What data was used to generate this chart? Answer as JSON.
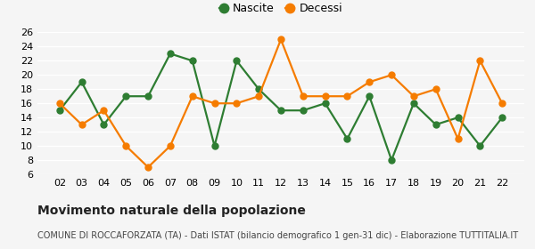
{
  "years": [
    "02",
    "03",
    "04",
    "05",
    "06",
    "07",
    "08",
    "09",
    "10",
    "11",
    "12",
    "13",
    "14",
    "15",
    "16",
    "17",
    "18",
    "19",
    "20",
    "21",
    "22"
  ],
  "nascite": [
    15,
    19,
    13,
    17,
    17,
    23,
    22,
    10,
    22,
    18,
    15,
    15,
    16,
    11,
    17,
    8,
    16,
    13,
    14,
    10,
    14
  ],
  "decessi": [
    16,
    13,
    15,
    10,
    7,
    10,
    17,
    16,
    16,
    17,
    25,
    17,
    17,
    17,
    19,
    20,
    17,
    18,
    11,
    22,
    16
  ],
  "nascite_color": "#2e7d32",
  "decessi_color": "#f57c00",
  "background_color": "#f5f5f5",
  "grid_color": "#ffffff",
  "title": "Movimento naturale della popolazione",
  "subtitle": "COMUNE DI ROCCAFORZATA (TA) - Dati ISTAT (bilancio demografico 1 gen-31 dic) - Elaborazione TUTTITALIA.IT",
  "legend_nascite": "Nascite",
  "legend_decessi": "Decessi",
  "ylim": [
    6,
    26
  ],
  "yticks": [
    6,
    8,
    10,
    12,
    14,
    16,
    18,
    20,
    22,
    24,
    26
  ],
  "marker_size": 5,
  "line_width": 1.6,
  "title_fontsize": 10,
  "subtitle_fontsize": 7,
  "legend_fontsize": 9,
  "tick_fontsize": 8
}
